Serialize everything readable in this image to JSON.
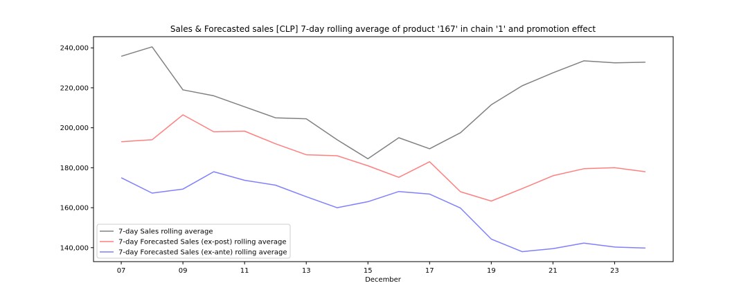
{
  "chart_data": {
    "type": "line",
    "title": "Sales & Forecasted sales [CLP] 7-day rolling average of product '167' in chain '1' and promotion effect",
    "xlabel": "December",
    "ylabel": "",
    "x": [
      7,
      8,
      9,
      10,
      11,
      12,
      13,
      14,
      15,
      16,
      17,
      18,
      19,
      20,
      21,
      22,
      23,
      24
    ],
    "xlim": [
      6.1,
      24.9
    ],
    "ylim": [
      133000,
      245600
    ],
    "x_ticks": [
      7,
      9,
      11,
      13,
      15,
      17,
      19,
      21,
      23
    ],
    "x_tick_labels": [
      "07",
      "09",
      "11",
      "13",
      "15",
      "17",
      "19",
      "21",
      "23"
    ],
    "y_ticks": [
      140000,
      160000,
      180000,
      200000,
      220000,
      240000
    ],
    "y_tick_labels": [
      "140,000",
      "160,000",
      "180,000",
      "200,000",
      "220,000",
      "240,000"
    ],
    "legend_position": "lower-left",
    "series": [
      {
        "name": "7-day Sales rolling average",
        "color": "#808080",
        "values": [
          235800,
          240500,
          219000,
          216000,
          210500,
          205000,
          204500,
          194000,
          184500,
          195000,
          189500,
          197500,
          211500,
          221000,
          227500,
          233500,
          232500,
          232800
        ]
      },
      {
        "name": "7-day Forecasted Sales (ex-post) rolling average",
        "color": "#ff7f7f",
        "values": [
          193000,
          194000,
          206500,
          198000,
          198300,
          192000,
          186500,
          186000,
          181000,
          175200,
          183000,
          168000,
          163300,
          169500,
          176000,
          179500,
          180000,
          178000
        ]
      },
      {
        "name": "7-day Forecasted Sales (ex-ante) rolling average",
        "color": "#7f7fff",
        "values": [
          175000,
          167300,
          169300,
          178000,
          173700,
          171300,
          165500,
          160000,
          163000,
          168100,
          166800,
          159800,
          144300,
          138000,
          139500,
          142300,
          140300,
          139800
        ]
      }
    ]
  }
}
